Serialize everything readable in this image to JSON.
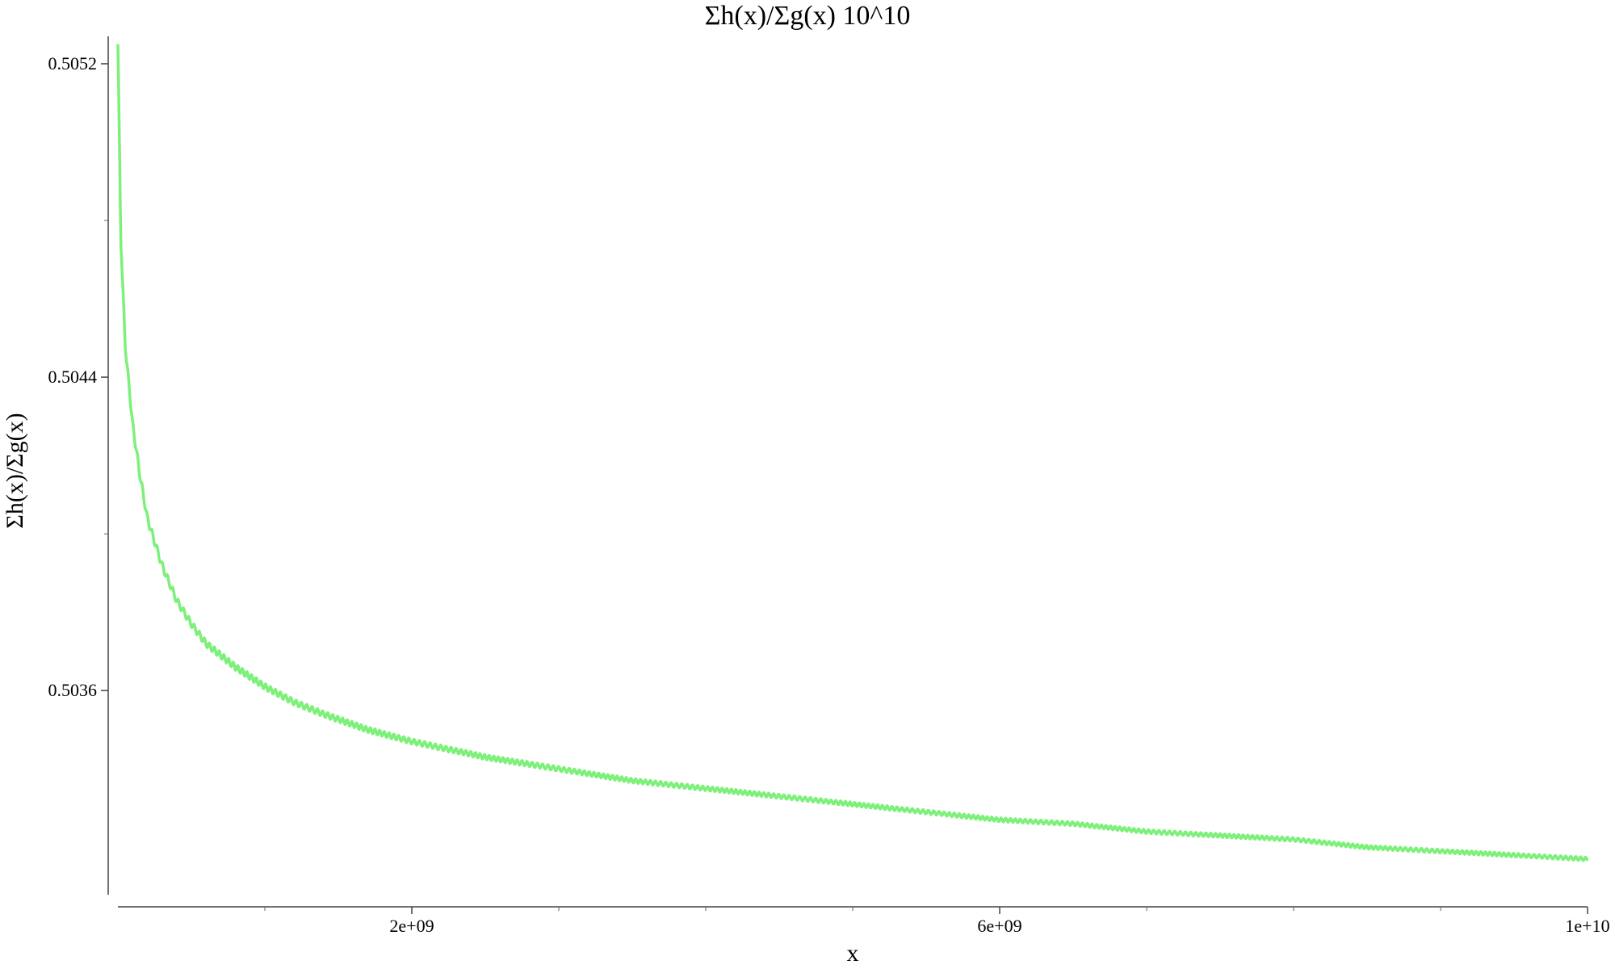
{
  "chart_data": {
    "type": "line",
    "title": "Σh(x)/Σg(x) 10^10",
    "xlabel": "x",
    "ylabel": "Σh(x)/Σg(x)",
    "xlim": [
      0,
      10000000000
    ],
    "ylim": [
      0.50305,
      0.50527
    ],
    "x_tick_labels": [
      "2e+09",
      "6e+09",
      "1e+10"
    ],
    "x_ticks": [
      2000000000,
      6000000000,
      10000000000
    ],
    "x_minor_ticks": [
      1000000000,
      3000000000,
      4000000000,
      5000000000,
      7000000000,
      8000000000,
      9000000000
    ],
    "y_tick_labels": [
      "0.5052",
      "0.5044",
      "0.5036"
    ],
    "y_ticks": [
      0.5052,
      0.5044,
      0.5036
    ],
    "y_minor_ticks": [
      0.5048,
      0.504
    ],
    "grid": false,
    "legend": "none",
    "series": [
      {
        "color": "#7df07a",
        "points": [
          [
            0,
            0.50525
          ],
          [
            20000000,
            0.50475
          ],
          [
            50000000,
            0.50448
          ],
          [
            100000000,
            0.50428
          ],
          [
            150000000,
            0.50415
          ],
          [
            200000000,
            0.50404
          ],
          [
            250000000,
            0.50398
          ],
          [
            300000000,
            0.50392
          ],
          [
            400000000,
            0.50383
          ],
          [
            500000000,
            0.50377
          ],
          [
            600000000,
            0.50372
          ],
          [
            800000000,
            0.50366
          ],
          [
            1000000000,
            0.50361
          ],
          [
            1200000000,
            0.50357
          ],
          [
            1400000000,
            0.50354
          ],
          [
            1700000000,
            0.5035
          ],
          [
            2000000000,
            0.50347
          ],
          [
            2500000000,
            0.50343
          ],
          [
            3000000000,
            0.5034
          ],
          [
            3500000000,
            0.50337
          ],
          [
            4000000000,
            0.50335
          ],
          [
            4500000000,
            0.50333
          ],
          [
            5000000000,
            0.50331
          ],
          [
            5500000000,
            0.50329
          ],
          [
            6000000000,
            0.50327
          ],
          [
            6500000000,
            0.50326
          ],
          [
            7000000000,
            0.50324
          ],
          [
            7500000000,
            0.50323
          ],
          [
            8000000000,
            0.50322
          ],
          [
            8500000000,
            0.5032
          ],
          [
            9000000000,
            0.50319
          ],
          [
            9500000000,
            0.50318
          ],
          [
            10000000000,
            0.50317
          ]
        ]
      }
    ]
  }
}
